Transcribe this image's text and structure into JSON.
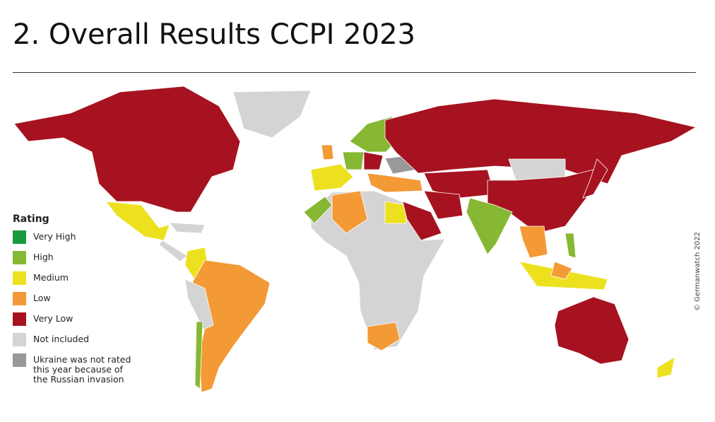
{
  "header": {
    "title": "2. Overall Results CCPI 2023"
  },
  "legend": {
    "title": "Rating",
    "items": [
      {
        "label": "Very High",
        "color": "#1a9a3c"
      },
      {
        "label": "High",
        "color": "#86b833"
      },
      {
        "label": "Medium",
        "color": "#ede11f"
      },
      {
        "label": "Low",
        "color": "#f39a36"
      },
      {
        "label": "Very Low",
        "color": "#a6121f"
      },
      {
        "label": "Not included",
        "color": "#d4d4d4"
      },
      {
        "label": "Ukraine was not rated this year because of the Russian invasion",
        "color": "#999999"
      }
    ]
  },
  "credit": "© Germanwatch 2022"
}
